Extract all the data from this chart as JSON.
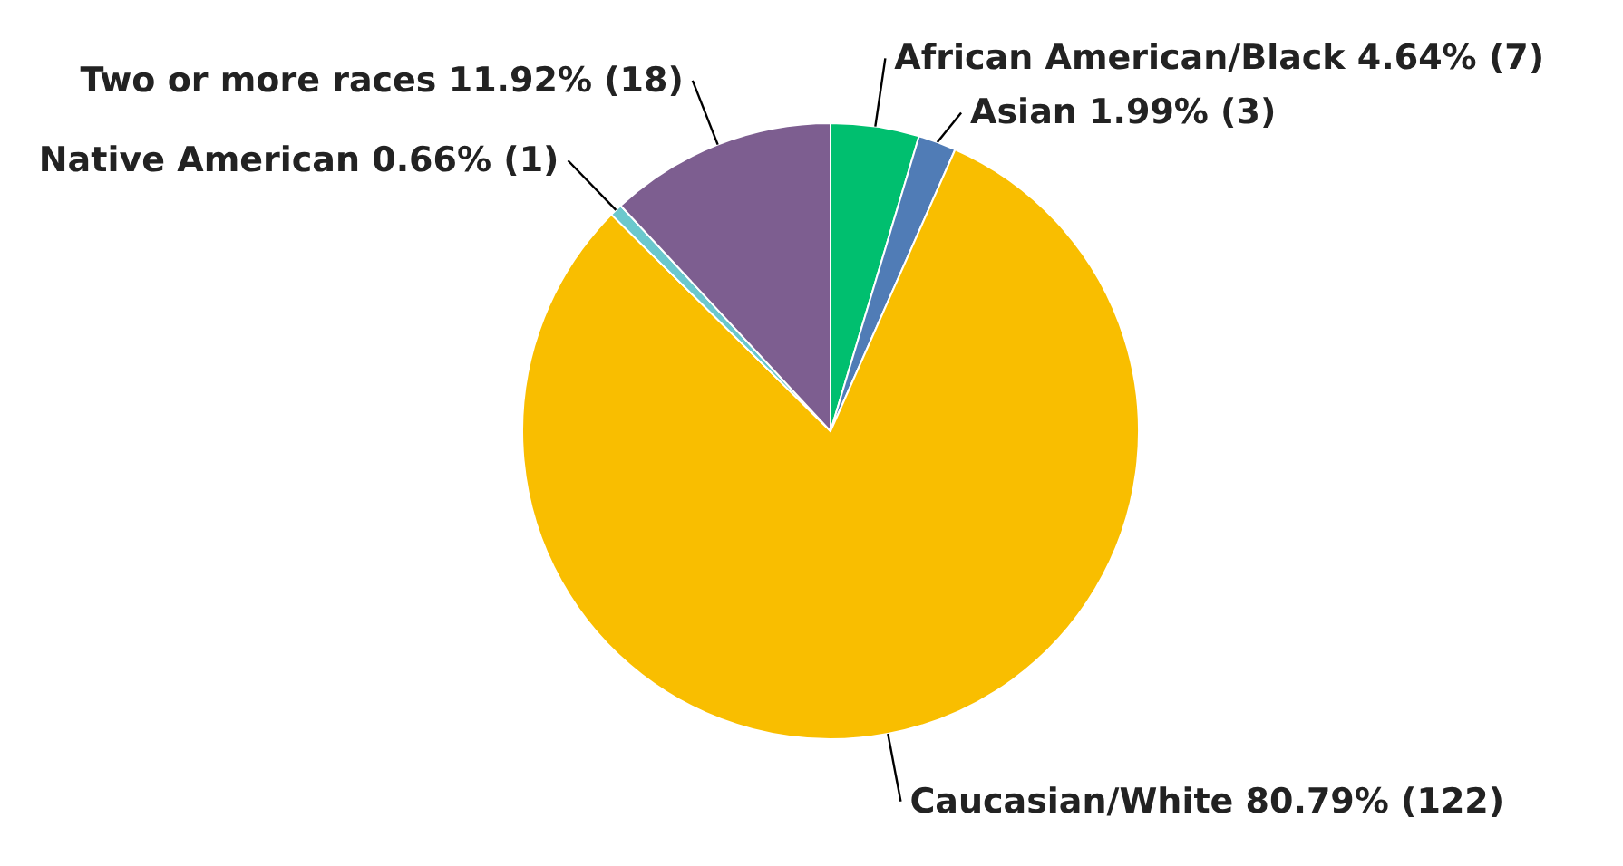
{
  "chart_data": {
    "type": "pie",
    "categories": [
      "African American/Black",
      "Asian",
      "Caucasian/White",
      "Native American",
      "Two or more races"
    ],
    "values": [
      7,
      3,
      122,
      1,
      18
    ],
    "value_labels": [
      "4.64% (7)",
      "1.99% (3)",
      "80.79% (122)",
      "0.66% (1)",
      "11.92% (18)"
    ],
    "colors": [
      "#00bf6f",
      "#507cb6",
      "#f9be00",
      "#6bc8cd",
      "#7d5e90"
    ]
  }
}
